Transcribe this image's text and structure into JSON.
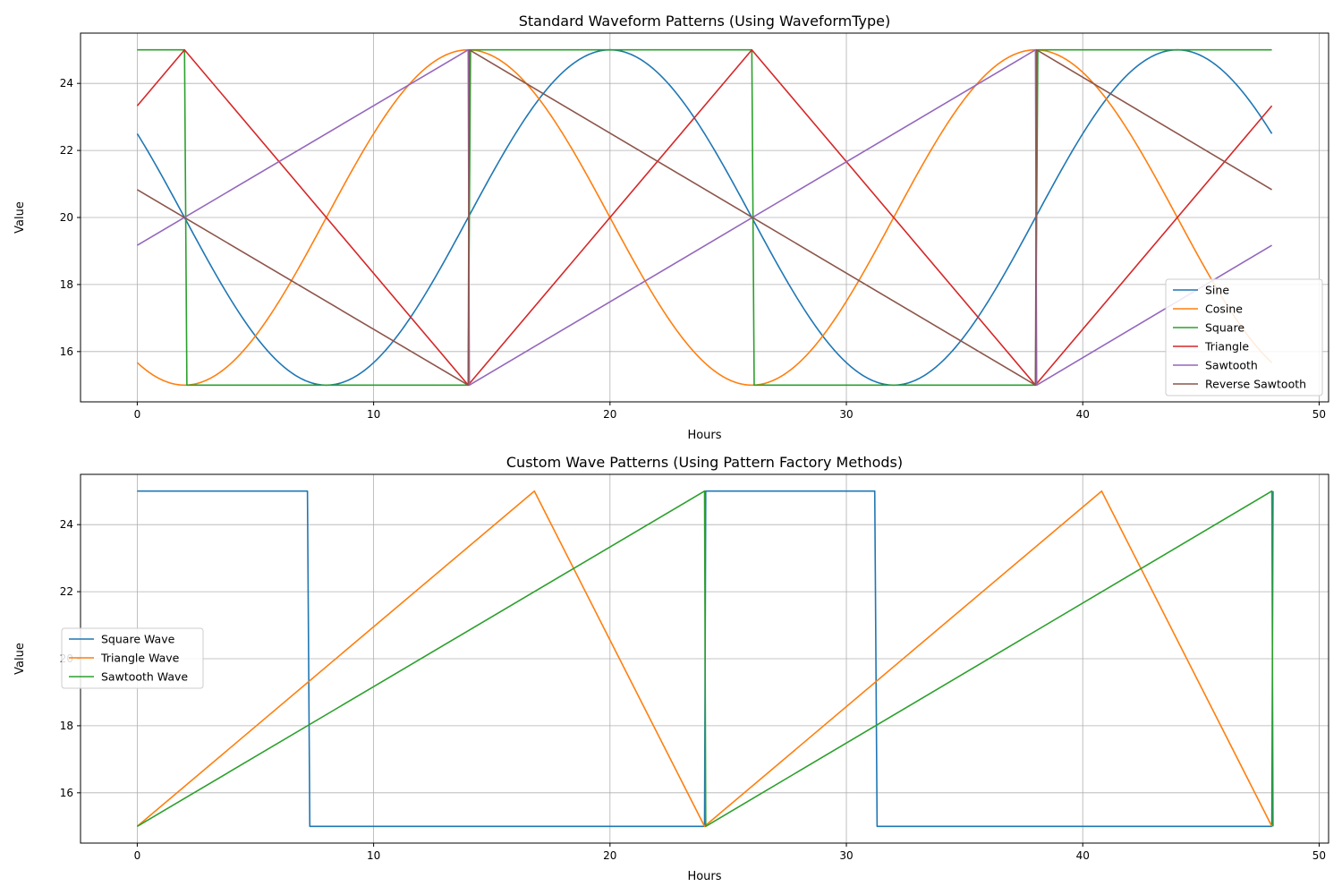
{
  "chart_data": [
    {
      "type": "line",
      "title": "Standard Waveform Patterns (Using WaveformType)",
      "xlabel": "Hours",
      "ylabel": "Value",
      "xlim": [
        -2.4,
        50.4
      ],
      "ylim": [
        14.5,
        25.5
      ],
      "xticks": [
        0,
        10,
        20,
        30,
        40,
        50
      ],
      "yticks": [
        16,
        18,
        20,
        22,
        24
      ],
      "grid": true,
      "legend_position": "lower right",
      "series": [
        {
          "name": "Sine",
          "color": "#1f77b4",
          "x": [
            0,
            2,
            4,
            6,
            8,
            10,
            12,
            14,
            16,
            18,
            20,
            22,
            24,
            26,
            28,
            30,
            32,
            34,
            36,
            38,
            40,
            42,
            44,
            46,
            48
          ],
          "y": [
            22.5,
            20,
            17.5,
            15.67,
            15,
            15.67,
            17.5,
            20,
            22.5,
            24.33,
            25,
            24.33,
            22.5,
            20,
            17.5,
            15.67,
            15,
            15.67,
            17.5,
            20,
            22.5,
            24.33,
            25,
            24.33,
            22.5
          ]
        },
        {
          "name": "Cosine",
          "color": "#ff7f0e",
          "x": [
            0,
            2,
            4,
            6,
            8,
            10,
            12,
            14,
            16,
            18,
            20,
            22,
            24,
            26,
            28,
            30,
            32,
            34,
            36,
            38,
            40,
            42,
            44,
            46,
            48
          ],
          "y": [
            15.67,
            15,
            15.67,
            17.5,
            20,
            22.5,
            24.33,
            25,
            24.33,
            22.5,
            20,
            17.5,
            15.67,
            15,
            15.67,
            17.5,
            20,
            22.5,
            24.33,
            25,
            24.33,
            22.5,
            20,
            17.5,
            15.67
          ]
        },
        {
          "name": "Square",
          "color": "#2ca02c",
          "x": [
            0,
            2,
            2.1,
            14,
            14.1,
            26,
            26.1,
            38,
            38.1,
            48
          ],
          "y": [
            25,
            25,
            15,
            15,
            25,
            25,
            15,
            15,
            25,
            25
          ]
        },
        {
          "name": "Triangle",
          "color": "#d62728",
          "x": [
            0,
            2,
            14,
            26,
            38,
            48
          ],
          "y": [
            23.33,
            25,
            15,
            25,
            15,
            23.33
          ]
        },
        {
          "name": "Sawtooth",
          "color": "#9467bd",
          "x": [
            0,
            14,
            14.05,
            38,
            38.05,
            48
          ],
          "y": [
            19.17,
            25,
            15,
            25,
            15,
            19.17
          ]
        },
        {
          "name": "Reverse Sawtooth",
          "color": "#8c564b",
          "x": [
            0,
            14,
            14.05,
            38,
            38.05,
            48
          ],
          "y": [
            20.83,
            15,
            25,
            15,
            25,
            20.83
          ]
        }
      ]
    },
    {
      "type": "line",
      "title": "Custom Wave Patterns (Using Pattern Factory Methods)",
      "xlabel": "Hours",
      "ylabel": "Value",
      "xlim": [
        -2.4,
        50.4
      ],
      "ylim": [
        14.5,
        25.5
      ],
      "xticks": [
        0,
        10,
        20,
        30,
        40,
        50
      ],
      "yticks": [
        16,
        18,
        20,
        22,
        24
      ],
      "grid": true,
      "legend_position": "center left",
      "series": [
        {
          "name": "Square Wave",
          "color": "#1f77b4",
          "x": [
            0,
            7.2,
            7.3,
            24,
            24.05,
            31.2,
            31.3,
            48,
            48.05
          ],
          "y": [
            25,
            25,
            15,
            15,
            25,
            25,
            15,
            15,
            25
          ]
        },
        {
          "name": "Triangle Wave",
          "color": "#ff7f0e",
          "x": [
            0,
            16.8,
            24,
            40.8,
            48
          ],
          "y": [
            15,
            25,
            15,
            25,
            15
          ]
        },
        {
          "name": "Sawtooth Wave",
          "color": "#2ca02c",
          "x": [
            0,
            24,
            24.05,
            48,
            48.05
          ],
          "y": [
            15,
            25,
            15,
            25,
            15
          ]
        }
      ]
    }
  ]
}
